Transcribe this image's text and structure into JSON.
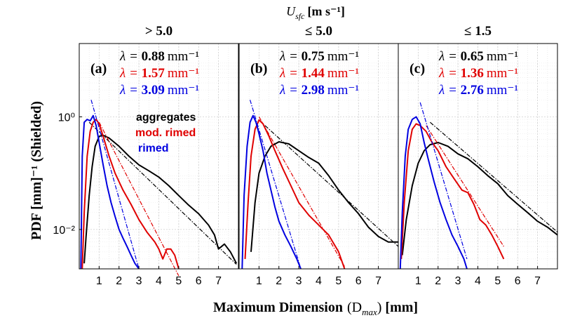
{
  "figure": {
    "super_title": "U_sfc [m s⁻¹]",
    "super_title_var": "U",
    "super_title_sub": "sfc",
    "super_title_unit": "[m s⁻¹]",
    "xlabel_main": "Maximum Dimension",
    "xlabel_var": "(D",
    "xlabel_sub": "max",
    "xlabel_close": ")",
    "xlabel_unit": "[mm]",
    "ylabel": "PDF [mm]⁻¹ (Shielded)",
    "legend": [
      {
        "label": "aggregates",
        "color": "#000000"
      },
      {
        "label": "mod. rimed",
        "color": "#e00000"
      },
      {
        "label": "rimed",
        "color": "#0000e0"
      }
    ],
    "lambda_symbol": "λ =",
    "lambda_unit": "mm⁻¹"
  },
  "chart_data": [
    {
      "type": "line",
      "panel_label": "(a)",
      "title": "> 5.0",
      "xlim": [
        0,
        8
      ],
      "ylim": [
        0.002,
        20
      ],
      "yscale": "log",
      "xticks": [
        1,
        2,
        3,
        4,
        5,
        6,
        7
      ],
      "yticks": [
        {
          "value": 1,
          "label": "10⁰"
        },
        {
          "value": 0.01,
          "label": "10⁻²"
        }
      ],
      "lambdas": [
        {
          "value": "0.88",
          "color": "#000000"
        },
        {
          "value": "1.57",
          "color": "#e00000"
        },
        {
          "value": "3.09",
          "color": "#0000e0"
        }
      ],
      "series": [
        {
          "name": "aggregates",
          "color": "#000000",
          "x": [
            0.25,
            0.35,
            0.5,
            0.65,
            0.8,
            1.0,
            1.2,
            1.5,
            2.0,
            2.5,
            3.0,
            3.5,
            4.0,
            4.5,
            5.0,
            5.5,
            6.0,
            6.5,
            6.8,
            7.0,
            7.3,
            7.6,
            7.9
          ],
          "y": [
            0.0025,
            0.008,
            0.04,
            0.13,
            0.3,
            0.45,
            0.47,
            0.42,
            0.3,
            0.2,
            0.14,
            0.11,
            0.085,
            0.06,
            0.04,
            0.027,
            0.019,
            0.012,
            0.008,
            0.0045,
            0.0055,
            0.004,
            0.0025
          ]
        },
        {
          "name": "aggregates fit",
          "color": "#000000",
          "dashed": true,
          "x": [
            0.5,
            7.9
          ],
          "y": [
            0.8,
            0.0024
          ]
        },
        {
          "name": "mod. rimed",
          "color": "#e00000",
          "x": [
            0.15,
            0.25,
            0.4,
            0.55,
            0.7,
            0.85,
            1.0,
            1.2,
            1.5,
            1.8,
            2.2,
            2.6,
            3.0,
            3.4,
            3.8,
            4.0,
            4.2,
            4.4,
            4.6,
            4.8,
            5.0
          ],
          "y": [
            0.002,
            0.02,
            0.2,
            0.55,
            0.8,
            0.9,
            0.75,
            0.45,
            0.2,
            0.1,
            0.05,
            0.028,
            0.015,
            0.009,
            0.006,
            0.0045,
            0.003,
            0.0045,
            0.0045,
            0.0035,
            0.002
          ]
        },
        {
          "name": "mod. rimed fit",
          "color": "#e00000",
          "dashed": true,
          "x": [
            1.0,
            5.0
          ],
          "y": [
            0.8,
            0.0015
          ]
        },
        {
          "name": "rimed",
          "color": "#0000e0",
          "x": [
            0.08,
            0.15,
            0.25,
            0.4,
            0.55,
            0.7,
            0.85,
            1.0,
            1.2,
            1.4,
            1.6,
            1.8,
            2.0,
            2.2,
            2.4,
            2.6,
            2.8,
            3.0
          ],
          "y": [
            0.002,
            0.2,
            0.8,
            0.9,
            0.85,
            1.05,
            0.7,
            0.35,
            0.14,
            0.06,
            0.03,
            0.017,
            0.01,
            0.007,
            0.005,
            0.0035,
            0.0025,
            0.002
          ]
        },
        {
          "name": "rimed fit",
          "color": "#0000e0",
          "dashed": true,
          "x": [
            0.6,
            3.0
          ],
          "y": [
            2.0,
            0.002
          ]
        }
      ]
    },
    {
      "type": "line",
      "panel_label": "(b)",
      "title": "≤ 5.0",
      "xlim": [
        0,
        8
      ],
      "ylim": [
        0.002,
        20
      ],
      "yscale": "log",
      "xticks": [
        1,
        2,
        3,
        4,
        5,
        6,
        7
      ],
      "yticks": [],
      "lambdas": [
        {
          "value": "0.75",
          "color": "#000000"
        },
        {
          "value": "1.44",
          "color": "#e00000"
        },
        {
          "value": "2.98",
          "color": "#0000e0"
        }
      ],
      "series": [
        {
          "name": "aggregates",
          "color": "#000000",
          "x": [
            0.6,
            0.8,
            1.0,
            1.3,
            1.6,
            2.0,
            2.5,
            3.0,
            3.5,
            4.0,
            4.5,
            5.0,
            5.5,
            6.0,
            6.5,
            7.0,
            7.5,
            8.0
          ],
          "y": [
            0.004,
            0.03,
            0.1,
            0.2,
            0.3,
            0.36,
            0.33,
            0.25,
            0.19,
            0.15,
            0.09,
            0.05,
            0.03,
            0.019,
            0.011,
            0.0075,
            0.006,
            0.006
          ]
        },
        {
          "name": "aggregates fit",
          "color": "#000000",
          "dashed": true,
          "x": [
            1.3,
            8.0
          ],
          "y": [
            0.7,
            0.005
          ]
        },
        {
          "name": "mod. rimed",
          "color": "#e00000",
          "x": [
            0.3,
            0.45,
            0.6,
            0.8,
            1.0,
            1.2,
            1.5,
            1.8,
            2.2,
            2.6,
            3.0,
            3.5,
            4.0,
            4.5,
            5.0,
            5.3
          ],
          "y": [
            0.003,
            0.03,
            0.2,
            0.6,
            0.88,
            0.75,
            0.45,
            0.25,
            0.12,
            0.06,
            0.03,
            0.018,
            0.012,
            0.008,
            0.004,
            0.002
          ]
        },
        {
          "name": "mod. rimed fit",
          "color": "#e00000",
          "dashed": true,
          "x": [
            1.0,
            5.3
          ],
          "y": [
            1.0,
            0.0022
          ]
        },
        {
          "name": "rimed",
          "color": "#0000e0",
          "x": [
            0.15,
            0.25,
            0.4,
            0.55,
            0.7,
            0.85,
            1.0,
            1.2,
            1.4,
            1.6,
            1.8,
            2.0,
            2.3,
            2.6,
            2.9,
            3.1
          ],
          "y": [
            0.002,
            0.04,
            0.3,
            0.8,
            1.05,
            0.8,
            0.5,
            0.25,
            0.1,
            0.05,
            0.025,
            0.014,
            0.008,
            0.005,
            0.003,
            0.002
          ]
        },
        {
          "name": "rimed fit",
          "color": "#0000e0",
          "dashed": true,
          "x": [
            0.55,
            3.1
          ],
          "y": [
            2.0,
            0.002
          ]
        }
      ]
    },
    {
      "type": "line",
      "panel_label": "(c)",
      "title": "≤ 1.5",
      "xlim": [
        0,
        8
      ],
      "ylim": [
        0.002,
        20
      ],
      "yscale": "log",
      "xticks": [
        1,
        2,
        3,
        4,
        5,
        6,
        7
      ],
      "yticks": [],
      "lambdas": [
        {
          "value": "0.65",
          "color": "#000000"
        },
        {
          "value": "1.36",
          "color": "#e00000"
        },
        {
          "value": "2.76",
          "color": "#0000e0"
        }
      ],
      "series": [
        {
          "name": "aggregates",
          "color": "#000000",
          "x": [
            0.2,
            0.4,
            0.7,
            1.0,
            1.3,
            1.6,
            2.0,
            2.5,
            3.0,
            3.5,
            4.0,
            4.5,
            5.0,
            5.5,
            6.0,
            6.5,
            7.0,
            7.5,
            8.0
          ],
          "y": [
            0.0035,
            0.015,
            0.06,
            0.15,
            0.25,
            0.32,
            0.35,
            0.3,
            0.22,
            0.18,
            0.13,
            0.09,
            0.065,
            0.04,
            0.028,
            0.02,
            0.014,
            0.011,
            0.008
          ]
        },
        {
          "name": "aggregates fit",
          "color": "#000000",
          "dashed": true,
          "x": [
            1.6,
            8.0
          ],
          "y": [
            0.8,
            0.009
          ]
        },
        {
          "name": "mod. rimed",
          "color": "#e00000",
          "x": [
            0.15,
            0.3,
            0.5,
            0.7,
            0.9,
            1.1,
            1.4,
            1.7,
            2.0,
            2.4,
            2.8,
            3.2,
            3.5,
            3.8,
            4.1,
            4.4,
            4.7,
            5.0,
            5.3
          ],
          "y": [
            0.003,
            0.03,
            0.25,
            0.6,
            0.75,
            0.7,
            0.55,
            0.35,
            0.25,
            0.13,
            0.08,
            0.05,
            0.045,
            0.028,
            0.015,
            0.012,
            0.008,
            0.005,
            0.003
          ]
        },
        {
          "name": "mod. rimed fit",
          "color": "#e00000",
          "dashed": true,
          "x": [
            1.4,
            5.3
          ],
          "y": [
            0.7,
            0.005
          ]
        },
        {
          "name": "rimed",
          "color": "#0000e0",
          "x": [
            0.1,
            0.2,
            0.35,
            0.5,
            0.7,
            0.9,
            1.1,
            1.3,
            1.5,
            1.8,
            2.1,
            2.4,
            2.7,
            3.0,
            3.3,
            3.45
          ],
          "y": [
            0.002,
            0.02,
            0.2,
            0.6,
            0.9,
            1.0,
            0.75,
            0.35,
            0.18,
            0.07,
            0.03,
            0.015,
            0.008,
            0.005,
            0.003,
            0.002
          ]
        },
        {
          "name": "rimed fit",
          "color": "#0000e0",
          "dashed": true,
          "x": [
            1.1,
            3.45
          ],
          "y": [
            1.8,
            0.003
          ]
        }
      ]
    }
  ]
}
